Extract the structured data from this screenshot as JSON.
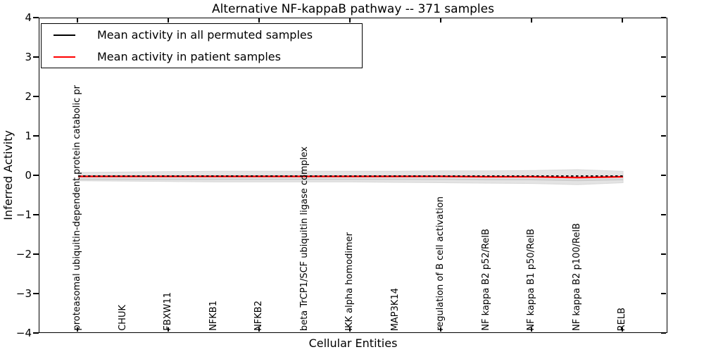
{
  "figure": {
    "title": "Alternative NF-kappaB pathway -- 371 samples",
    "xlabel": "Cellular Entities",
    "ylabel": "Inferred Activity"
  },
  "legend": {
    "entries": [
      {
        "label": "Mean activity in all permuted samples",
        "color": "#000000"
      },
      {
        "label": "Mean activity in patient samples",
        "color": "#ff0000"
      }
    ],
    "position": "upper left"
  },
  "chart_data": {
    "type": "line",
    "title": "Alternative NF-kappaB pathway -- 371 samples",
    "xlabel": "Cellular Entities",
    "ylabel": "Inferred Activity",
    "ylim": [
      -4,
      4
    ],
    "ytick_labels": [
      "4",
      "3",
      "2",
      "1",
      "0",
      "−1",
      "−2",
      "−3",
      "−4"
    ],
    "ytick_values": [
      4,
      3,
      2,
      1,
      0,
      -1,
      -2,
      -3,
      -4
    ],
    "grid": false,
    "legend_position": "upper left",
    "categories": [
      "proteasomal ubiquitin-dependent protein catabolic pr",
      "CHUK",
      "FBXW11",
      "NFKB1",
      "NFKB2",
      "beta TrCP1/SCF ubiquitin ligase complex",
      "IKK alpha homodimer",
      "MAP3K14",
      "regulation of B cell activation",
      "NF kappa B2 p52/RelB",
      "NF kappa B1 p50/RelB",
      "NF kappa B2 p100/RelB",
      "RELB"
    ],
    "series": [
      {
        "name": "Mean activity in all permuted samples",
        "color": "#000000",
        "line_style": "dashed",
        "values": [
          0,
          0,
          0,
          0,
          0,
          0,
          0,
          0,
          0,
          0,
          0,
          0,
          0
        ]
      },
      {
        "name": "Mean activity in patient samples",
        "color": "#ff0000",
        "line_style": "solid",
        "values": [
          -0.01,
          -0.01,
          -0.01,
          -0.01,
          -0.01,
          -0.01,
          -0.01,
          -0.01,
          -0.01,
          -0.02,
          -0.02,
          -0.04,
          -0.02
        ]
      }
    ],
    "band": {
      "name": "permuted-activity-spread",
      "color": "#e4e4e4",
      "upper": [
        0.09,
        0.1,
        0.11,
        0.12,
        0.12,
        0.12,
        0.12,
        0.12,
        0.13,
        0.13,
        0.14,
        0.16,
        0.12
      ],
      "lower": [
        -0.12,
        -0.13,
        -0.14,
        -0.15,
        -0.15,
        -0.15,
        -0.15,
        -0.16,
        -0.17,
        -0.18,
        -0.19,
        -0.22,
        -0.17
      ]
    }
  }
}
